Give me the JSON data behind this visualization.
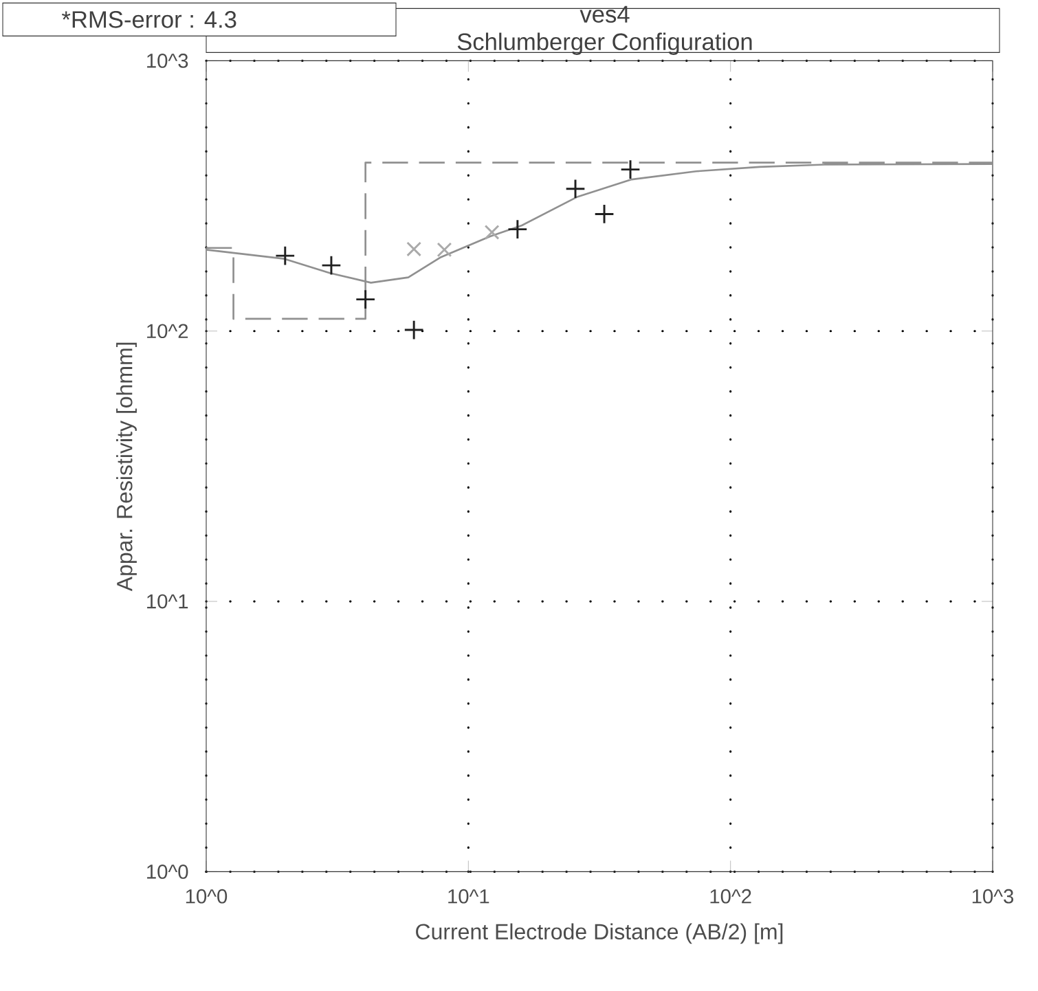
{
  "chart_data": {
    "type": "scatter",
    "title": "ves4",
    "subtitle": "Schlumberger Configuration",
    "xlabel": "Current Electrode Distance (AB/2) [m]",
    "ylabel": "Appar. Resistivity [ohmm]",
    "annotations": [
      "*RMS-error :  4.3"
    ],
    "log": "xy",
    "grid": true,
    "xlim": [
      1,
      1000
    ],
    "ylim": [
      1,
      1000
    ],
    "xticks": [
      {
        "value": 1,
        "label": "10^0"
      },
      {
        "value": 10,
        "label": "10^1"
      },
      {
        "value": 100,
        "label": "10^2"
      },
      {
        "value": 1000,
        "label": "10^3"
      }
    ],
    "yticks": [
      {
        "value": 1,
        "label": "10^0"
      },
      {
        "value": 10,
        "label": "10^1"
      },
      {
        "value": 100,
        "label": "10^2"
      },
      {
        "value": 1000,
        "label": "10^3"
      }
    ],
    "series": [
      {
        "type": "step",
        "color": "#909090",
        "line_style": "dashed",
        "marker": "none",
        "x": [
          1,
          1.27,
          4.05,
          1000
        ],
        "values": [
          203,
          111,
          420,
          420
        ]
      },
      {
        "type": "line",
        "color": "#909090",
        "line_style": "solid",
        "marker": "none",
        "x": [
          1,
          1.99,
          2.96,
          4.25,
          5.9,
          7.8,
          12.1,
          16,
          25.9,
          42,
          74,
          129,
          228,
          1000
        ],
        "values": [
          200,
          185,
          164,
          151,
          158,
          187,
          224,
          246,
          313,
          364,
          390,
          405,
          413,
          415
        ]
      },
      {
        "color": "#aaaaaa",
        "marker": "cross",
        "x": [
          6.2,
          8.1,
          12.3
        ],
        "values": [
          201,
          200,
          232
        ]
      },
      {
        "color": "#202020",
        "marker": "plus",
        "x": [
          2.0,
          3.0,
          4.05,
          6.2,
          15.4,
          25.6,
          33,
          41.5
        ],
        "values": [
          190,
          175,
          131,
          101,
          238,
          336,
          271,
          396
        ]
      }
    ]
  }
}
